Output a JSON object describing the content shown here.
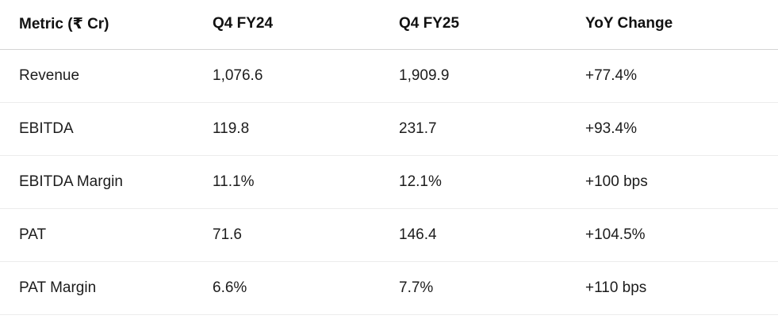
{
  "table": {
    "headers": [
      "Metric (₹ Cr)",
      "Q4 FY24",
      "Q4 FY25",
      "YoY Change"
    ],
    "rows": [
      [
        "Revenue",
        "1,076.6",
        "1,909.9",
        "+77.4%"
      ],
      [
        "EBITDA",
        "119.8",
        "231.7",
        "+93.4%"
      ],
      [
        "EBITDA Margin",
        "11.1%",
        "12.1%",
        "+100 bps"
      ],
      [
        "PAT",
        "71.6",
        "146.4",
        "+104.5%"
      ],
      [
        "PAT Margin",
        "6.6%",
        "7.7%",
        "+110 bps"
      ]
    ]
  }
}
